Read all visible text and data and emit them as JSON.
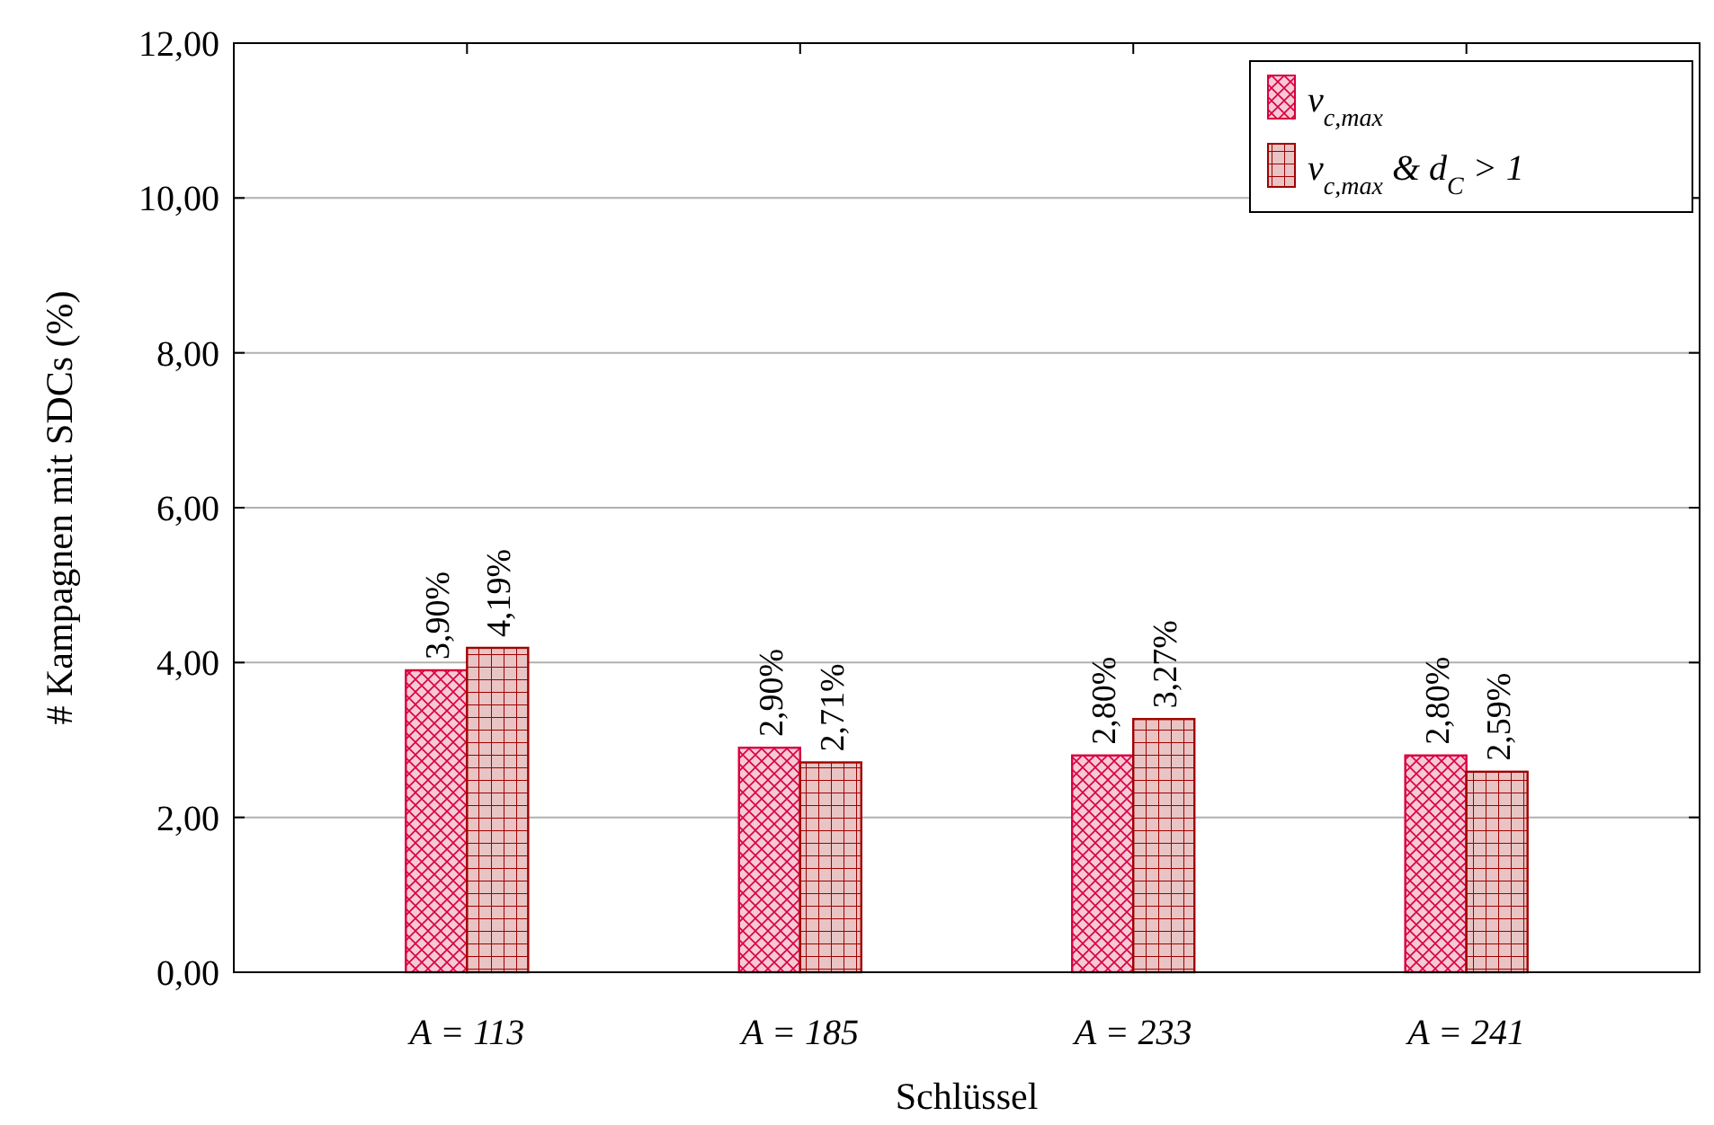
{
  "chart_data": {
    "type": "bar",
    "xlabel": "Schlüssel",
    "ylabel": "# Kampagnen mit SDCs (%)",
    "categories": [
      "A = 113",
      "A = 185",
      "A = 233",
      "A = 241"
    ],
    "series": [
      {
        "name": "v$_{c,max}$",
        "color": "#d8003f",
        "values": [
          3.9,
          2.9,
          2.8,
          2.8
        ],
        "value_labels": [
          "3,90%",
          "2,90%",
          "2,80%",
          "2,80%"
        ]
      },
      {
        "name": "v$_{c,max}$ & d$_{C}$ > 1",
        "color": "#a00000",
        "values": [
          4.19,
          2.71,
          3.27,
          2.59
        ],
        "value_labels": [
          "4,19%",
          "2,71%",
          "3,27%",
          "2,59%"
        ]
      }
    ],
    "ylim": [
      0,
      12
    ],
    "yticks": [
      {
        "value": 0,
        "label": "0,00"
      },
      {
        "value": 2,
        "label": "2,00"
      },
      {
        "value": 4,
        "label": "4,00"
      },
      {
        "value": 6,
        "label": "6,00"
      },
      {
        "value": 8,
        "label": "8,00"
      },
      {
        "value": 10,
        "label": "10,00"
      },
      {
        "value": 12,
        "label": "12,00"
      }
    ],
    "grid": "y",
    "legend": "top right"
  }
}
